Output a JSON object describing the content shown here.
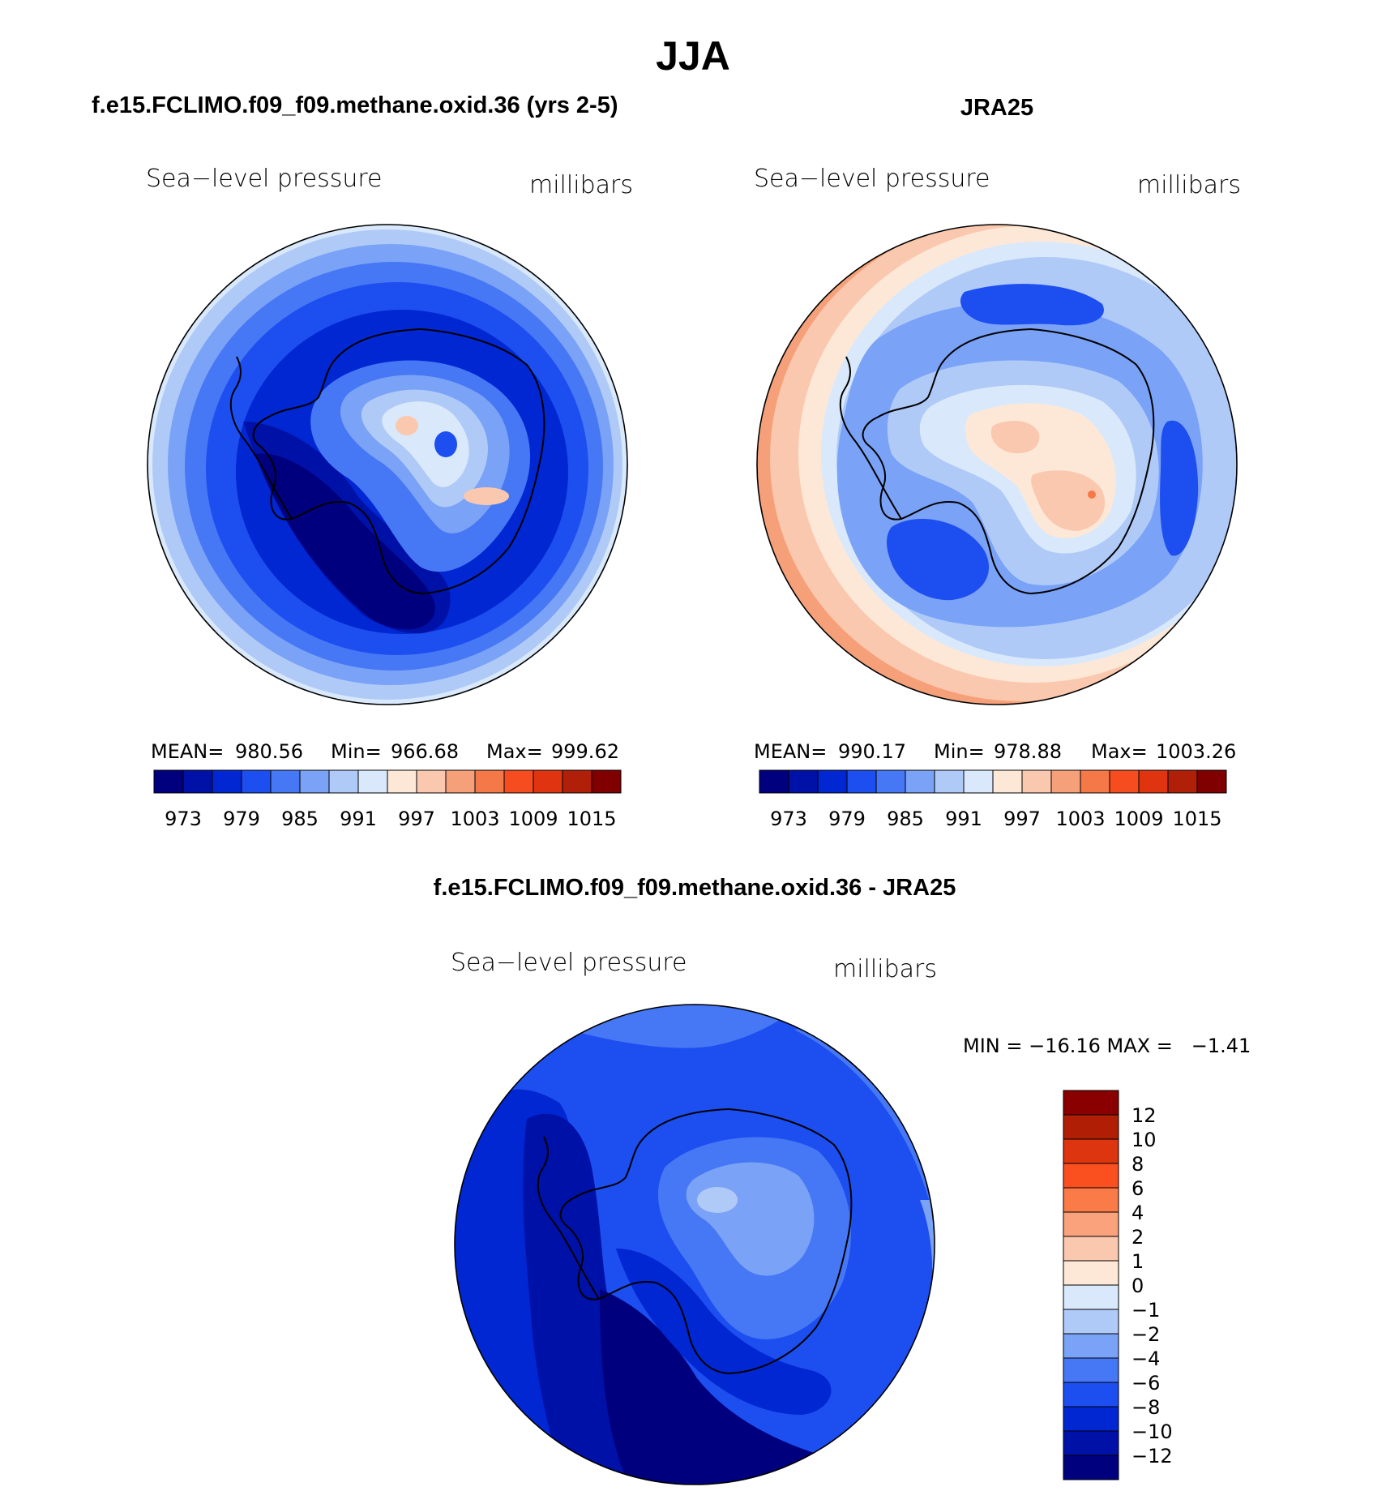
{
  "title": "JJA",
  "panel_left": {
    "heading": "f.e15.FCLIMO.f09_f09.methane.oxid.36 (yrs 2-5)",
    "variable": "Sea−level pressure",
    "units": "millibars",
    "stats": {
      "mean_label": "MEAN=",
      "mean": "980.56",
      "min_label": "Min=",
      "min": "966.68",
      "max_label": "Max=",
      "max": "999.62"
    }
  },
  "panel_right": {
    "heading": "JRA25",
    "variable": "Sea−level pressure",
    "units": "millibars",
    "stats": {
      "mean_label": "MEAN=",
      "mean": "990.17",
      "min_label": "Min=",
      "min": "978.88",
      "max_label": "Max=",
      "max": "1003.26"
    }
  },
  "abs_colorbar": {
    "colors": [
      "#00007f",
      "#0011a8",
      "#0027d2",
      "#1d4ef0",
      "#4677f4",
      "#7aa2f6",
      "#b0caf8",
      "#d9e9fb",
      "#fde8d8",
      "#fac8ae",
      "#f6a07a",
      "#f57848",
      "#f54d1f",
      "#e03410",
      "#b02008",
      "#800000"
    ],
    "tick_labels": [
      "973",
      "979",
      "985",
      "991",
      "997",
      "1003",
      "1009",
      "1015"
    ]
  },
  "diff_panel": {
    "heading": "f.e15.FCLIMO.f09_f09.methane.oxid.36 - JRA25",
    "variable": "Sea−level pressure",
    "units": "millibars",
    "minmax": "MIN = −16.16 MAX =   −1.41"
  },
  "diff_colorbar": {
    "colors_top_to_bottom": [
      "#8a0000",
      "#b01e05",
      "#dd3510",
      "#fa5020",
      "#fa7a48",
      "#f9a27c",
      "#fac8ae",
      "#fde8d8",
      "#d9e9fb",
      "#b0caf8",
      "#7aa2f6",
      "#4677f4",
      "#1d4ef0",
      "#0027d2",
      "#0011a8",
      "#00007f"
    ],
    "tick_labels": [
      "12",
      "10",
      "8",
      "6",
      "4",
      "2",
      "1",
      "0",
      "−1",
      "−2",
      "−4",
      "−6",
      "−8",
      "−10",
      "−12"
    ]
  },
  "palette": {
    "navy": "#00007f",
    "dark": "#0011a8",
    "blue": "#0027d2",
    "mid": "#1d4ef0",
    "med": "#4677f4",
    "light": "#7aa2f6",
    "pale": "#b0caf8",
    "faint": "#d9e9fb",
    "peach": "#fde8d8",
    "salmon": "#fac8ae",
    "orange": "#f6a07a"
  }
}
